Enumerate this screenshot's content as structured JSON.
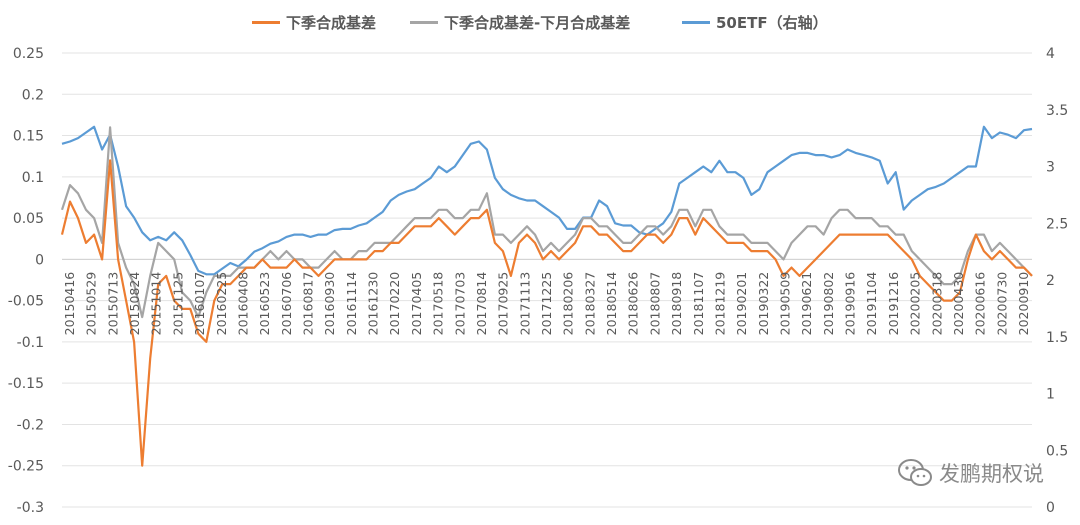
{
  "chart_data": {
    "type": "line",
    "legend": [
      {
        "name": "下季合成基差",
        "color": "#ED7D31"
      },
      {
        "name": "下季合成基差-下月合成基差",
        "color": "#A5A5A5"
      },
      {
        "name": "50ETF（右轴）",
        "color": "#5B9BD5"
      }
    ],
    "y_left": {
      "ylim": [
        -0.3,
        0.25
      ],
      "ticks": [
        "0.25",
        "0.2",
        "0.15",
        "0.1",
        "0.05",
        "0",
        "-0.05",
        "-0.1",
        "-0.15",
        "-0.2",
        "-0.25",
        "-0.3"
      ]
    },
    "y_right": {
      "ylim": [
        0,
        4
      ],
      "ticks": [
        "4",
        "3.5",
        "3",
        "2.5",
        "2",
        "1.5",
        "1",
        "0.5",
        "0"
      ]
    },
    "x_tick_labels": [
      "20150416",
      "20150529",
      "20150713",
      "20150824",
      "20151014",
      "20151125",
      "20160107",
      "20160225",
      "20160408",
      "20160523",
      "20160706",
      "20160817",
      "20160930",
      "20161114",
      "20161230",
      "20170220",
      "20170405",
      "20170518",
      "20170703",
      "20170814",
      "20170925",
      "20171113",
      "20171225",
      "20180206",
      "20180327",
      "20180514",
      "20180626",
      "20180807",
      "20180918",
      "20181107",
      "20181219",
      "20190201",
      "20190322",
      "20190509",
      "20190621",
      "20190802",
      "20190916",
      "20191104",
      "20191216",
      "20200205",
      "20200318",
      "20200430",
      "20200616",
      "20200730",
      "20200910"
    ],
    "series": [
      {
        "name": "50ETF（右轴）",
        "axis": "right",
        "color": "#5B9BD5",
        "values": [
          3.2,
          3.22,
          3.25,
          3.3,
          3.35,
          3.15,
          3.28,
          3.0,
          2.65,
          2.55,
          2.42,
          2.35,
          2.38,
          2.35,
          2.42,
          2.35,
          2.22,
          2.08,
          2.05,
          2.05,
          2.1,
          2.15,
          2.12,
          2.18,
          2.25,
          2.28,
          2.32,
          2.34,
          2.38,
          2.4,
          2.4,
          2.38,
          2.4,
          2.4,
          2.44,
          2.45,
          2.45,
          2.48,
          2.5,
          2.55,
          2.6,
          2.7,
          2.75,
          2.78,
          2.8,
          2.85,
          2.9,
          3.0,
          2.95,
          3.0,
          3.1,
          3.2,
          3.22,
          3.15,
          2.9,
          2.8,
          2.75,
          2.72,
          2.7,
          2.7,
          2.65,
          2.6,
          2.55,
          2.45,
          2.45,
          2.55,
          2.55,
          2.7,
          2.65,
          2.5,
          2.48,
          2.48,
          2.42,
          2.4,
          2.45,
          2.5,
          2.6,
          2.85,
          2.9,
          2.95,
          3.0,
          2.95,
          3.05,
          2.95,
          2.95,
          2.9,
          2.75,
          2.8,
          2.95,
          3.0,
          3.05,
          3.1,
          3.12,
          3.12,
          3.1,
          3.1,
          3.08,
          3.1,
          3.15,
          3.12,
          3.1,
          3.08,
          3.05,
          2.85,
          2.95,
          2.62,
          2.7,
          2.75,
          2.8,
          2.82,
          2.85,
          2.9,
          2.95,
          3.0,
          3.0,
          3.35,
          3.25,
          3.3,
          3.28,
          3.25,
          3.32,
          3.33
        ]
      },
      {
        "name": "下季合成基差-下月合成基差",
        "axis": "left",
        "color": "#A5A5A5",
        "values": [
          0.06,
          0.09,
          0.08,
          0.06,
          0.05,
          0.02,
          0.16,
          0.02,
          -0.01,
          -0.03,
          -0.07,
          -0.02,
          0.02,
          0.01,
          0.0,
          -0.04,
          -0.05,
          -0.07,
          -0.04,
          -0.02,
          -0.02,
          -0.02,
          -0.01,
          -0.01,
          -0.01,
          0.0,
          0.01,
          0.0,
          0.01,
          0.0,
          0.0,
          -0.01,
          -0.01,
          0.0,
          0.01,
          0.0,
          0.0,
          0.01,
          0.01,
          0.02,
          0.02,
          0.02,
          0.03,
          0.04,
          0.05,
          0.05,
          0.05,
          0.06,
          0.06,
          0.05,
          0.05,
          0.06,
          0.06,
          0.08,
          0.03,
          0.03,
          0.02,
          0.03,
          0.04,
          0.03,
          0.01,
          0.02,
          0.01,
          0.02,
          0.03,
          0.05,
          0.05,
          0.04,
          0.04,
          0.03,
          0.02,
          0.02,
          0.03,
          0.04,
          0.04,
          0.03,
          0.04,
          0.06,
          0.06,
          0.04,
          0.06,
          0.06,
          0.04,
          0.03,
          0.03,
          0.03,
          0.02,
          0.02,
          0.02,
          0.01,
          0.0,
          0.02,
          0.03,
          0.04,
          0.04,
          0.03,
          0.05,
          0.06,
          0.06,
          0.05,
          0.05,
          0.05,
          0.04,
          0.04,
          0.03,
          0.03,
          0.01,
          0.0,
          -0.01,
          -0.02,
          -0.03,
          -0.03,
          -0.02,
          0.01,
          0.03,
          0.03,
          0.01,
          0.02,
          0.01,
          0.0,
          -0.01,
          -0.02
        ]
      },
      {
        "name": "下季合成基差",
        "axis": "left",
        "color": "#ED7D31",
        "values": [
          0.03,
          0.07,
          0.05,
          0.02,
          0.03,
          0.0,
          0.12,
          0.0,
          -0.05,
          -0.1,
          -0.25,
          -0.12,
          -0.03,
          -0.02,
          -0.05,
          -0.06,
          -0.06,
          -0.09,
          -0.1,
          -0.05,
          -0.03,
          -0.03,
          -0.02,
          -0.01,
          -0.01,
          0.0,
          -0.01,
          -0.01,
          -0.01,
          0.0,
          -0.01,
          -0.01,
          -0.02,
          -0.01,
          0.0,
          0.0,
          0.0,
          0.0,
          0.0,
          0.01,
          0.01,
          0.02,
          0.02,
          0.03,
          0.04,
          0.04,
          0.04,
          0.05,
          0.04,
          0.03,
          0.04,
          0.05,
          0.05,
          0.06,
          0.02,
          0.01,
          -0.02,
          0.02,
          0.03,
          0.02,
          0.0,
          0.01,
          0.0,
          0.01,
          0.02,
          0.04,
          0.04,
          0.03,
          0.03,
          0.02,
          0.01,
          0.01,
          0.02,
          0.03,
          0.03,
          0.02,
          0.03,
          0.05,
          0.05,
          0.03,
          0.05,
          0.04,
          0.03,
          0.02,
          0.02,
          0.02,
          0.01,
          0.01,
          0.01,
          0.0,
          -0.02,
          -0.01,
          -0.02,
          -0.01,
          0.0,
          0.01,
          0.02,
          0.03,
          0.03,
          0.03,
          0.03,
          0.03,
          0.03,
          0.03,
          0.02,
          0.01,
          0.0,
          -0.02,
          -0.03,
          -0.04,
          -0.05,
          -0.05,
          -0.04,
          0.0,
          0.03,
          0.01,
          0.0,
          0.01,
          0.0,
          -0.01,
          -0.01,
          -0.02
        ]
      }
    ]
  },
  "watermark": {
    "text": "发鹏期权说",
    "icon": "wechat-icon"
  }
}
